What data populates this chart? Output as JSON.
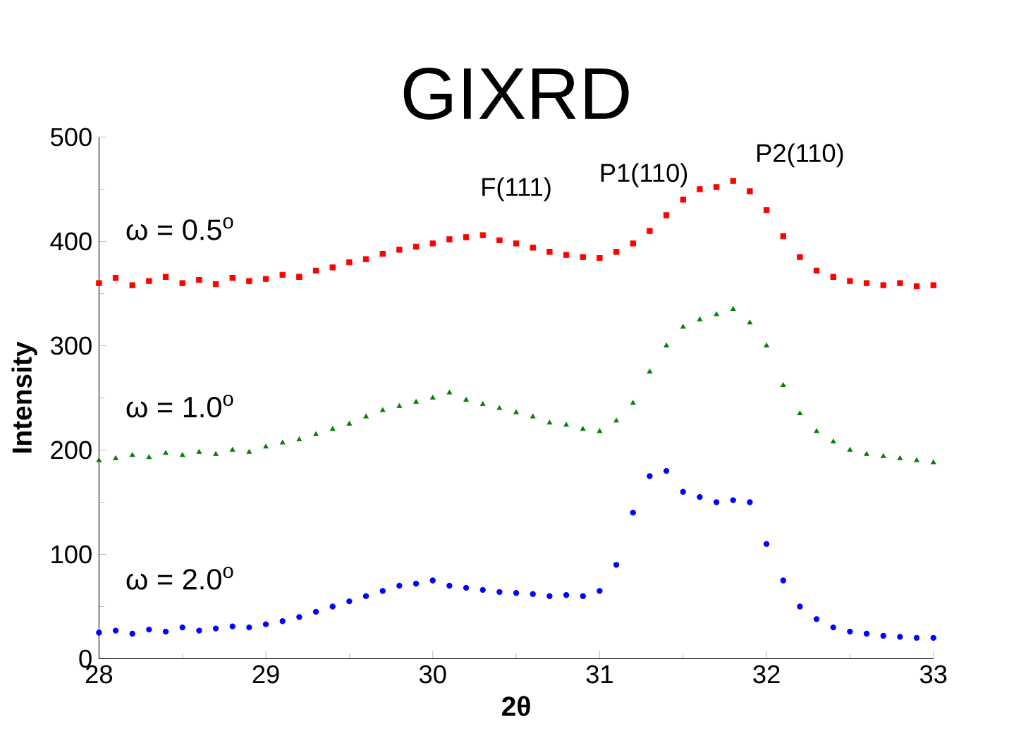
{
  "chart_data": {
    "type": "scatter",
    "title": "GIXRD",
    "xlabel": "2θ",
    "ylabel": "Intensity",
    "x": [
      28.0,
      28.1,
      28.2,
      28.3,
      28.4,
      28.5,
      28.6,
      28.7,
      28.8,
      28.9,
      29.0,
      29.1,
      29.2,
      29.3,
      29.4,
      29.5,
      29.6,
      29.7,
      29.8,
      29.9,
      30.0,
      30.1,
      30.2,
      30.3,
      30.4,
      30.5,
      30.6,
      30.7,
      30.8,
      30.9,
      31.0,
      31.1,
      31.2,
      31.3,
      31.4,
      31.5,
      31.6,
      31.7,
      31.8,
      31.9,
      32.0,
      32.1,
      32.2,
      32.3,
      32.4,
      32.5,
      32.6,
      32.7,
      32.8,
      32.9,
      33.0
    ],
    "series": [
      {
        "name": "ω = 0.5$^{o}$",
        "color": "#ff0000",
        "marker": "square",
        "values": [
          360,
          365,
          358,
          362,
          366,
          360,
          363,
          359,
          365,
          362,
          364,
          368,
          366,
          372,
          375,
          380,
          383,
          388,
          392,
          395,
          398,
          402,
          404,
          406,
          401,
          398,
          394,
          390,
          387,
          385,
          384,
          390,
          398,
          410,
          425,
          440,
          450,
          452,
          458,
          448,
          430,
          405,
          385,
          372,
          366,
          362,
          360,
          358,
          360,
          357,
          358
        ]
      },
      {
        "name": "ω = 1.0$^{o}$",
        "color": "#008000",
        "marker": "triangle",
        "values": [
          190,
          192,
          195,
          193,
          197,
          195,
          198,
          196,
          200,
          198,
          203,
          207,
          210,
          215,
          220,
          225,
          232,
          238,
          242,
          246,
          250,
          255,
          248,
          244,
          240,
          236,
          232,
          226,
          224,
          220,
          218,
          228,
          245,
          275,
          300,
          318,
          325,
          330,
          335,
          322,
          300,
          262,
          235,
          218,
          208,
          200,
          196,
          194,
          192,
          190,
          188
        ]
      },
      {
        "name": "ω = 2.0$^{o}$",
        "color": "#0000ff",
        "marker": "circle",
        "values": [
          25,
          27,
          24,
          28,
          26,
          30,
          27,
          29,
          31,
          30,
          33,
          36,
          40,
          45,
          50,
          55,
          60,
          65,
          70,
          72,
          75,
          70,
          68,
          66,
          64,
          63,
          62,
          60,
          61,
          60,
          65,
          90,
          140,
          175,
          180,
          160,
          155,
          150,
          152,
          150,
          110,
          75,
          50,
          38,
          30,
          26,
          24,
          22,
          21,
          20,
          20
        ]
      }
    ],
    "annotations": [
      "F(111)",
      "P1(110)",
      "P2(110)"
    ],
    "xlim": [
      28,
      33
    ],
    "xticks": [
      28,
      29,
      30,
      31,
      32,
      33
    ],
    "ylim": [
      0,
      500
    ],
    "yticks": [
      0,
      100,
      200,
      300,
      400,
      500
    ]
  }
}
